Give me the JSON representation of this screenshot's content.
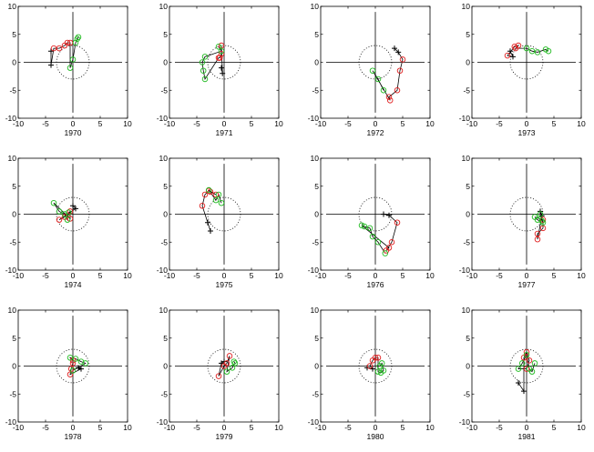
{
  "chart_data": [
    {
      "type": "scatter",
      "xlabel": "1970",
      "xlim": [
        -10,
        10
      ],
      "ylim": [
        -10,
        10
      ],
      "xticks": [
        -10,
        -5,
        0,
        5,
        10
      ],
      "yticks": [
        -10,
        -5,
        0,
        5,
        10
      ],
      "grid": false,
      "reference_circle_radius": 3,
      "plus": [
        [
          -4,
          2
        ],
        [
          -4,
          -0.5
        ]
      ],
      "red": [
        [
          -3.5,
          2.5
        ],
        [
          -2.5,
          2.5
        ],
        [
          -1.5,
          3
        ],
        [
          -1,
          3.5
        ],
        [
          -0.5,
          3.5
        ]
      ],
      "green": [
        [
          -0.5,
          -1
        ],
        [
          0,
          0.5
        ],
        [
          0.5,
          3.5
        ],
        [
          1,
          4.5
        ],
        [
          0.8,
          4.2
        ]
      ]
    },
    {
      "type": "scatter",
      "xlabel": "1971",
      "xlim": [
        -10,
        10
      ],
      "ylim": [
        -10,
        10
      ],
      "xticks": [
        -10,
        -5,
        0,
        5,
        10
      ],
      "yticks": [
        -10,
        -5,
        0,
        5,
        10
      ],
      "grid": false,
      "reference_circle_radius": 3,
      "plus": [
        [
          -0.5,
          -1
        ],
        [
          -0.3,
          -2
        ]
      ],
      "red": [
        [
          -0.5,
          3
        ],
        [
          -0.5,
          1.5
        ],
        [
          -0.8,
          0.8
        ],
        [
          -1,
          0.8
        ]
      ],
      "green": [
        [
          -3.5,
          -3
        ],
        [
          -3.8,
          -1.5
        ],
        [
          -4,
          0
        ],
        [
          -3.5,
          1
        ],
        [
          -0.5,
          2
        ],
        [
          -1,
          2.8
        ]
      ]
    },
    {
      "type": "scatter",
      "xlabel": "1972",
      "xlim": [
        -10,
        10
      ],
      "ylim": [
        -10,
        10
      ],
      "xticks": [
        -10,
        -5,
        0,
        5,
        10
      ],
      "yticks": [
        -10,
        -5,
        0,
        5,
        10
      ],
      "grid": false,
      "reference_circle_radius": 3,
      "plus": [
        [
          3.5,
          2.5
        ],
        [
          4.2,
          1.8
        ]
      ],
      "red": [
        [
          5,
          0.5
        ],
        [
          4.5,
          -1.5
        ],
        [
          4,
          -5
        ],
        [
          2.5,
          -6.2
        ],
        [
          2.7,
          -6.8
        ]
      ],
      "green": [
        [
          -0.5,
          -1.5
        ],
        [
          0.5,
          -3
        ],
        [
          1.5,
          -5
        ]
      ]
    },
    {
      "type": "scatter",
      "xlabel": "1973",
      "xlim": [
        -10,
        10
      ],
      "ylim": [
        -10,
        10
      ],
      "xticks": [
        -10,
        -5,
        0,
        5,
        10
      ],
      "yticks": [
        -10,
        -5,
        0,
        5,
        10
      ],
      "grid": false,
      "reference_circle_radius": 3,
      "plus": [
        [
          -3,
          2
        ],
        [
          -2.5,
          1
        ]
      ],
      "red": [
        [
          -3.5,
          1.2
        ],
        [
          -2.2,
          2.8
        ],
        [
          -1.5,
          3
        ],
        [
          -2,
          2.5
        ]
      ],
      "green": [
        [
          0,
          2.5
        ],
        [
          1,
          2
        ],
        [
          2,
          1.8
        ],
        [
          3.5,
          2.3
        ],
        [
          4,
          2
        ]
      ]
    },
    {
      "type": "scatter",
      "xlabel": "1974",
      "xlim": [
        -10,
        10
      ],
      "ylim": [
        -10,
        10
      ],
      "xticks": [
        -10,
        -5,
        0,
        5,
        10
      ],
      "yticks": [
        -10,
        -5,
        0,
        5,
        10
      ],
      "grid": false,
      "reference_circle_radius": 3,
      "plus": [
        [
          0,
          1.5
        ],
        [
          0.5,
          1
        ]
      ],
      "red": [
        [
          -2.5,
          -1
        ],
        [
          -1.5,
          -0.5
        ],
        [
          -0.5,
          0.5
        ],
        [
          -0.5,
          -0.8
        ]
      ],
      "green": [
        [
          -3.5,
          2
        ],
        [
          -2.5,
          0.5
        ],
        [
          -1.5,
          0
        ],
        [
          -1,
          -1
        ],
        [
          -0.8,
          0.3
        ]
      ]
    },
    {
      "type": "scatter",
      "xlabel": "1975",
      "xlim": [
        -10,
        10
      ],
      "ylim": [
        -10,
        10
      ],
      "xticks": [
        -10,
        -5,
        0,
        5,
        10
      ],
      "yticks": [
        -10,
        -5,
        0,
        5,
        10
      ],
      "grid": false,
      "reference_circle_radius": 3,
      "plus": [
        [
          -3,
          -1.5
        ],
        [
          -2.5,
          -3
        ]
      ],
      "red": [
        [
          -4,
          1.5
        ],
        [
          -3.5,
          3.5
        ],
        [
          -2.8,
          4.2
        ],
        [
          -2.5,
          4
        ],
        [
          -1.5,
          3.5
        ]
      ],
      "green": [
        [
          -2.8,
          4.3
        ],
        [
          -1.5,
          2.5
        ],
        [
          -1,
          3.5
        ],
        [
          -0.5,
          2
        ]
      ]
    },
    {
      "type": "scatter",
      "xlabel": "1976",
      "xlim": [
        -10,
        10
      ],
      "ylim": [
        -10,
        10
      ],
      "xticks": [
        -10,
        -5,
        0,
        5,
        10
      ],
      "yticks": [
        -10,
        -5,
        0,
        5,
        10
      ],
      "grid": false,
      "reference_circle_radius": 3,
      "plus": [
        [
          1.5,
          0
        ],
        [
          2.5,
          -0.2
        ]
      ],
      "red": [
        [
          4,
          -1.5
        ],
        [
          3,
          -5
        ],
        [
          2,
          -6.5
        ],
        [
          2.5,
          -6
        ]
      ],
      "green": [
        [
          -2.5,
          -2
        ],
        [
          -2,
          -2.2
        ],
        [
          -1,
          -2.5
        ],
        [
          -0.5,
          -4
        ],
        [
          0.5,
          -5
        ],
        [
          1.8,
          -7
        ]
      ]
    },
    {
      "type": "scatter",
      "xlabel": "1977",
      "xlim": [
        -10,
        10
      ],
      "ylim": [
        -10,
        10
      ],
      "xticks": [
        -10,
        -5,
        0,
        5,
        10
      ],
      "yticks": [
        -10,
        -5,
        0,
        5,
        10
      ],
      "grid": false,
      "reference_circle_radius": 3,
      "plus": [
        [
          2.5,
          0.5
        ],
        [
          2.8,
          -0.3
        ]
      ],
      "red": [
        [
          2,
          -4.5
        ],
        [
          2,
          -3.5
        ],
        [
          3,
          -2.5
        ],
        [
          3,
          -1
        ]
      ],
      "green": [
        [
          1.5,
          -0.5
        ],
        [
          2,
          -1
        ],
        [
          3,
          -1.5
        ],
        [
          2.5,
          0
        ],
        [
          2.8,
          -1.2
        ]
      ]
    },
    {
      "type": "scatter",
      "xlabel": "1978",
      "xlim": [
        -10,
        10
      ],
      "ylim": [
        -10,
        10
      ],
      "xticks": [
        -10,
        -5,
        0,
        5,
        10
      ],
      "yticks": [
        -10,
        -5,
        0,
        5,
        10
      ],
      "grid": false,
      "reference_circle_radius": 3,
      "plus": [
        [
          1,
          -0.3
        ],
        [
          1.5,
          -0.5
        ]
      ],
      "red": [
        [
          -0.5,
          -1.5
        ],
        [
          -0.3,
          -0.5
        ],
        [
          0,
          0.5
        ],
        [
          0,
          1
        ]
      ],
      "green": [
        [
          -0.5,
          1.5
        ],
        [
          0.5,
          1.3
        ],
        [
          1.5,
          0.8
        ],
        [
          2.3,
          0.5
        ],
        [
          0,
          -0.8
        ]
      ]
    },
    {
      "type": "scatter",
      "xlabel": "1979",
      "xlim": [
        -10,
        10
      ],
      "ylim": [
        -10,
        10
      ],
      "xticks": [
        -10,
        -5,
        0,
        5,
        10
      ],
      "yticks": [
        -10,
        -5,
        0,
        5,
        10
      ],
      "grid": false,
      "reference_circle_radius": 3,
      "plus": [
        [
          0,
          0.8
        ],
        [
          -0.5,
          0.5
        ]
      ],
      "red": [
        [
          -1,
          -1.8
        ],
        [
          0,
          0
        ],
        [
          0.5,
          0.5
        ],
        [
          1,
          1.8
        ]
      ],
      "green": [
        [
          0.5,
          -1
        ],
        [
          1.5,
          -0.3
        ],
        [
          2,
          0.5
        ],
        [
          1.8,
          0.8
        ]
      ]
    },
    {
      "type": "scatter",
      "xlabel": "1980",
      "xlim": [
        -10,
        10
      ],
      "ylim": [
        -10,
        10
      ],
      "xticks": [
        -10,
        -5,
        0,
        5,
        10
      ],
      "yticks": [
        -10,
        -5,
        0,
        5,
        10
      ],
      "grid": false,
      "reference_circle_radius": 3,
      "plus": [
        [
          -1.5,
          -0.3
        ],
        [
          -0.5,
          -0.5
        ]
      ],
      "red": [
        [
          -1,
          0
        ],
        [
          -0.5,
          1
        ],
        [
          0,
          1.5
        ],
        [
          0.5,
          1.5
        ]
      ],
      "green": [
        [
          0.5,
          -1
        ],
        [
          1,
          -1.2
        ],
        [
          1.5,
          -0.8
        ],
        [
          1.2,
          0.5
        ],
        [
          0.8,
          0
        ]
      ]
    },
    {
      "type": "scatter",
      "xlabel": "1981",
      "xlim": [
        -10,
        10
      ],
      "ylim": [
        -10,
        10
      ],
      "xticks": [
        -10,
        -5,
        0,
        5,
        10
      ],
      "yticks": [
        -10,
        -5,
        0,
        5,
        10
      ],
      "grid": false,
      "reference_circle_radius": 3,
      "plus": [
        [
          -1.5,
          -3
        ],
        [
          -0.5,
          -4.5
        ]
      ],
      "red": [
        [
          -0.5,
          1.5
        ],
        [
          0,
          2.5
        ],
        [
          0.5,
          1
        ],
        [
          0,
          -0.5
        ]
      ],
      "green": [
        [
          -1.5,
          -0.5
        ],
        [
          -0.8,
          0.5
        ],
        [
          0,
          2
        ],
        [
          0.5,
          -0.5
        ],
        [
          1,
          -1
        ],
        [
          1.5,
          0.5
        ]
      ]
    }
  ]
}
